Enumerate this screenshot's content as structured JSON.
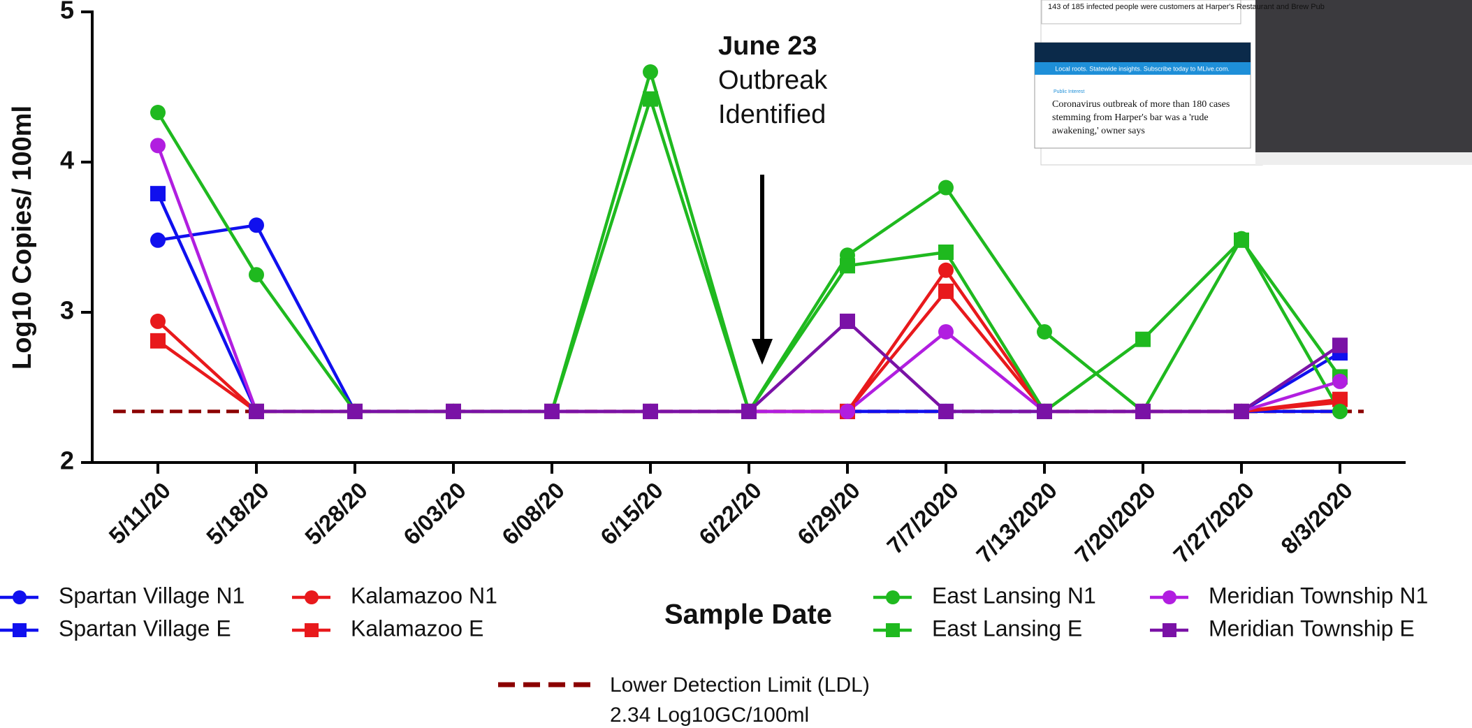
{
  "chart_data": {
    "type": "line",
    "y_label": "Log10 Copies/ 100ml",
    "x_label": "Sample Date",
    "categories": [
      "5/11/20",
      "5/18/20",
      "5/28/20",
      "6/03/20",
      "6/08/20",
      "6/15/20",
      "6/22/20",
      "6/29/20",
      "7/7/2020",
      "7/13/2020",
      "7/20/2020",
      "7/27/2020",
      "8/3/2020"
    ],
    "ylim": [
      2,
      5
    ],
    "yticks": [
      2,
      3,
      4,
      5
    ],
    "series": [
      {
        "name": "Spartan Village N1",
        "color": "#1010ee",
        "marker": "circle",
        "values": [
          3.48,
          3.58,
          2.34,
          2.34,
          2.34,
          2.34,
          2.34,
          2.34,
          2.34,
          2.34,
          2.34,
          2.34,
          2.34
        ]
      },
      {
        "name": "Spartan Village E",
        "color": "#1010ee",
        "marker": "square",
        "values": [
          3.79,
          2.34,
          2.34,
          2.34,
          2.34,
          2.34,
          2.34,
          2.34,
          2.34,
          2.34,
          2.34,
          2.34,
          2.73
        ]
      },
      {
        "name": "Kalamazoo N1",
        "color": "#e8191c",
        "marker": "circle",
        "values": [
          2.94,
          2.34,
          2.34,
          2.34,
          2.34,
          2.34,
          2.34,
          2.34,
          3.28,
          2.34,
          2.34,
          2.34,
          2.4
        ]
      },
      {
        "name": "Kalamazoo E",
        "color": "#e8191c",
        "marker": "square",
        "values": [
          2.81,
          2.34,
          2.34,
          2.34,
          2.34,
          2.34,
          2.34,
          2.34,
          3.14,
          2.34,
          2.34,
          2.34,
          2.42
        ]
      },
      {
        "name": "East  Lansing N1",
        "color": "#1fb91f",
        "marker": "circle",
        "values": [
          4.33,
          3.25,
          2.34,
          2.34,
          2.34,
          4.6,
          2.34,
          3.38,
          3.83,
          2.87,
          2.34,
          3.49,
          2.34
        ]
      },
      {
        "name": "East Lansing E",
        "color": "#1fb91f",
        "marker": "square",
        "values": [
          null,
          2.34,
          2.34,
          2.34,
          2.34,
          4.42,
          2.34,
          3.31,
          3.4,
          2.34,
          2.82,
          3.48,
          2.57
        ]
      },
      {
        "name": "Meridian Township N1",
        "color": "#b11ee0",
        "marker": "circle",
        "values": [
          4.11,
          2.34,
          2.34,
          2.34,
          2.34,
          2.34,
          2.34,
          2.34,
          2.87,
          2.34,
          2.34,
          2.34,
          2.54
        ]
      },
      {
        "name": "Meridian Township E",
        "color": "#7a12a6",
        "marker": "square",
        "values": [
          null,
          2.34,
          2.34,
          2.34,
          2.34,
          2.34,
          2.34,
          2.94,
          2.34,
          2.34,
          2.34,
          2.34,
          2.78
        ]
      }
    ],
    "ldl": {
      "value": 2.34,
      "color": "#8b0000",
      "label": "Lower Detection Limit (LDL)",
      "note": "2.34 Log10GC/100ml"
    },
    "annotation": {
      "lines": [
        "June 23",
        "Outbreak",
        "Identified"
      ]
    },
    "inset": {
      "caption": "143 of 185 infected people were customers at Harper's Restaurant and Brew Pub",
      "banner": "Local roots. Statewide insights. Subscribe today to MLive.com.",
      "section": "Public Interest",
      "headline": "Coronavirus outbreak of more than 180 cases stemming from Harper's bar was a 'rude awakening,' owner says"
    }
  }
}
